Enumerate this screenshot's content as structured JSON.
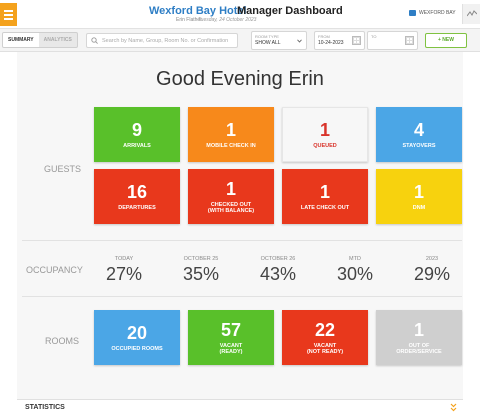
{
  "header": {
    "hotel_name": "Wexford Bay Hotel",
    "title": "Manager Dashboard",
    "user": "Erin Flather",
    "date": "Tuesday, 24 October 2023",
    "brand": "WEXFORD BAY",
    "accent": "#f4a21d"
  },
  "toolbar": {
    "tabs": [
      "SUMMARY",
      "ANALYTICS"
    ],
    "search_placeholder": "Search by Name, Group, Room No. or Confirmation",
    "room_type_label": "ROOM TYPE",
    "room_type_value": "SHOW ALL",
    "from_label": "FROM",
    "from_value": "10-24-2023",
    "to_label": "TO",
    "to_value": "",
    "new_label": "+ NEW"
  },
  "greeting": "Good Evening Erin",
  "sections": {
    "guests": "GUESTS",
    "occupancy": "OCCUPANCY",
    "rooms": "ROOMS"
  },
  "guest_tiles": [
    {
      "num": "9",
      "label": "ARRIVALS",
      "bg": "#59c02a",
      "fg": "#ffffff"
    },
    {
      "num": "1",
      "label": "MOBILE CHECK IN",
      "bg": "#f7891b",
      "fg": "#ffffff"
    },
    {
      "num": "1",
      "label": "QUEUED",
      "bg": "#f7f7f7",
      "fg": "#d9342b"
    },
    {
      "num": "4",
      "label": "STAYOVERS",
      "bg": "#4ba6e6",
      "fg": "#ffffff"
    },
    {
      "num": "16",
      "label": "DEPARTURES",
      "bg": "#e8381c",
      "fg": "#ffffff"
    },
    {
      "num": "1",
      "label": "CHECKED OUT\n(WITH BALANCE)",
      "bg": "#e8381c",
      "fg": "#ffffff"
    },
    {
      "num": "1",
      "label": "LATE CHECK OUT",
      "bg": "#e8381c",
      "fg": "#ffffff"
    },
    {
      "num": "1",
      "label": "DNM",
      "bg": "#f7d20e",
      "fg": "#ffffff"
    }
  ],
  "occupancy": [
    {
      "label": "TODAY",
      "value": "27%"
    },
    {
      "label": "OCTOBER 25",
      "value": "35%"
    },
    {
      "label": "OCTOBER 26",
      "value": "43%"
    },
    {
      "label": "MTD",
      "value": "30%"
    },
    {
      "label": "2023",
      "value": "29%"
    }
  ],
  "room_tiles": [
    {
      "num": "20",
      "label": "OCCUPIED ROOMS",
      "bg": "#4ba6e6",
      "fg": "#ffffff"
    },
    {
      "num": "57",
      "label": "VACANT\n(READY)",
      "bg": "#59c02a",
      "fg": "#ffffff"
    },
    {
      "num": "22",
      "label": "VACANT\n(NOT READY)",
      "bg": "#e8381c",
      "fg": "#ffffff"
    },
    {
      "num": "1",
      "label": "OUT OF\nORDER/SERVICE",
      "bg": "#cfcfcf",
      "fg": "#ffffff"
    }
  ],
  "statistics": {
    "title": "STATISTICS"
  }
}
